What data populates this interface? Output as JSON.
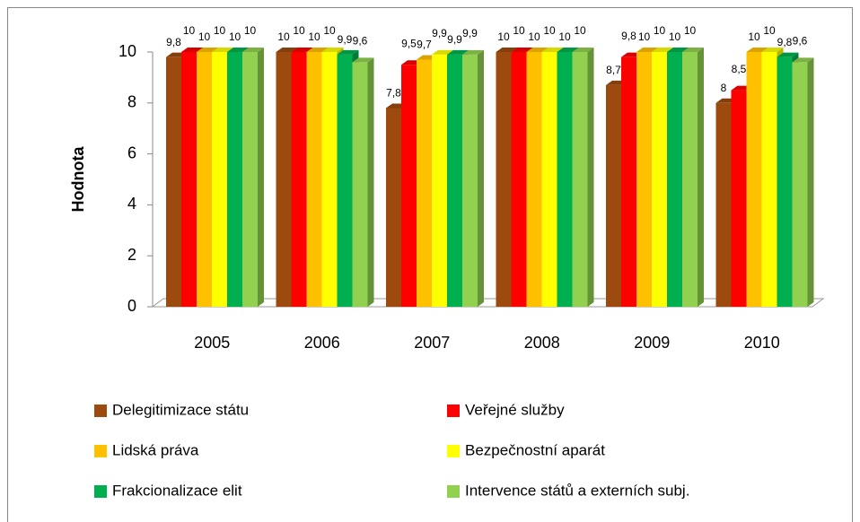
{
  "chart_data": {
    "type": "bar3d",
    "y_label": "Hodnota",
    "categories": [
      "2005",
      "2006",
      "2007",
      "2008",
      "2009",
      "2010"
    ],
    "ylim": [
      0,
      10
    ],
    "yticks": [
      0,
      2,
      4,
      6,
      8,
      10
    ],
    "legend": "bottom",
    "series": [
      {
        "name": "Delegitimizace státu",
        "color": "#9c4a0e",
        "values": [
          9.8,
          10,
          7.8,
          10,
          8.7,
          8
        ],
        "value_labels": [
          "9,8",
          "10",
          "7,8",
          "10",
          "8,7",
          "8"
        ]
      },
      {
        "name": "Veřejné služby",
        "color": "#ff0000",
        "values": [
          10,
          10,
          9.5,
          10,
          9.8,
          8.5
        ],
        "value_labels": [
          "10",
          "10",
          "9,5",
          "10",
          "9,8",
          "8,5"
        ]
      },
      {
        "name": "Lidská práva",
        "color": "#ffc000",
        "values": [
          10,
          10,
          9.7,
          10,
          10,
          10
        ],
        "value_labels": [
          "10",
          "10",
          "9,7",
          "10",
          "10",
          "10"
        ]
      },
      {
        "name": "Bezpečnostní  aparát",
        "color": "#ffff00",
        "values": [
          10,
          10,
          9.9,
          10,
          10,
          10
        ],
        "value_labels": [
          "10",
          "10",
          "9,9",
          "10",
          "10",
          "10"
        ]
      },
      {
        "name": "Frakcionalizace elit",
        "color": "#00b050",
        "values": [
          10,
          9.9,
          9.9,
          10,
          10,
          9.8
        ],
        "value_labels": [
          "10",
          "9,9",
          "9,9",
          "10",
          "10",
          "9,8"
        ]
      },
      {
        "name": "Intervence  států a externích subj.",
        "color": "#92d050",
        "values": [
          10,
          9.6,
          9.9,
          10,
          10,
          9.6
        ],
        "value_labels": [
          "10",
          "9,6",
          "9,9",
          "10",
          "10",
          "9,6"
        ]
      }
    ]
  }
}
